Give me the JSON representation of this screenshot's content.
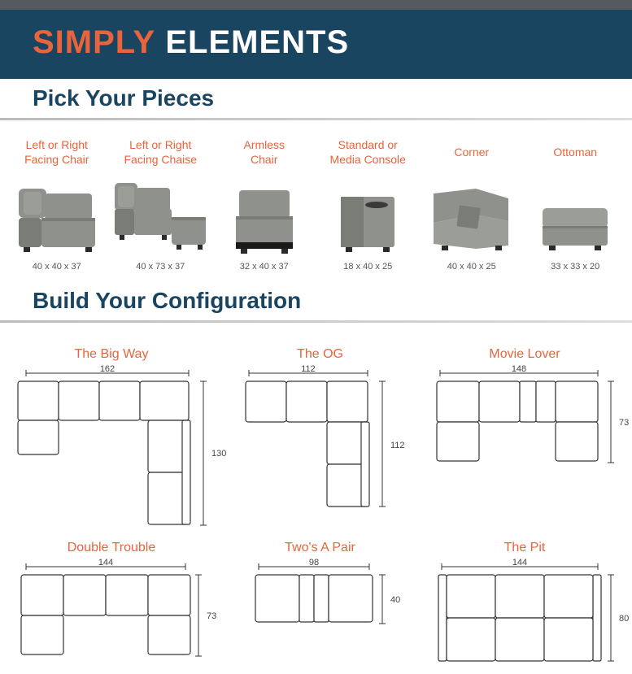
{
  "header": {
    "simply": "SIMPLY",
    "elements": " ELEMENTS"
  },
  "sections": {
    "pick": "Pick Your Pieces",
    "build": "Build Your Configuration"
  },
  "colors": {
    "accent": "#e8643c",
    "header_bg": "#1a4560",
    "furniture_fill": "#8f918c",
    "furniture_dark": "#6d6f6a",
    "line": "#333333"
  },
  "pieces": [
    {
      "name": "Left or Right\nFacing Chair",
      "dim": "40 x 40 x 37"
    },
    {
      "name": "Left or Right\nFacing Chaise",
      "dim": "40 x 73 x 37"
    },
    {
      "name": "Armless\nChair",
      "dim": "32 x 40 x 37"
    },
    {
      "name": "Standard or\nMedia Console",
      "dim": "18 x 40 x 25"
    },
    {
      "name": "Corner",
      "dim": "40 x 40 x 25"
    },
    {
      "name": "Ottoman",
      "dim": "33 x 33 x 20"
    }
  ],
  "configs": [
    {
      "name": "The Big Way",
      "w": 162,
      "h": 130
    },
    {
      "name": "The OG",
      "w": 112,
      "h": 112
    },
    {
      "name": "Movie Lover",
      "w": 148,
      "h": 73
    },
    {
      "name": "Double Trouble",
      "w": 144,
      "h": 73
    },
    {
      "name": "Two's A Pair",
      "w": 98,
      "h": 40
    },
    {
      "name": "The Pit",
      "w": 144,
      "h": 80
    }
  ]
}
